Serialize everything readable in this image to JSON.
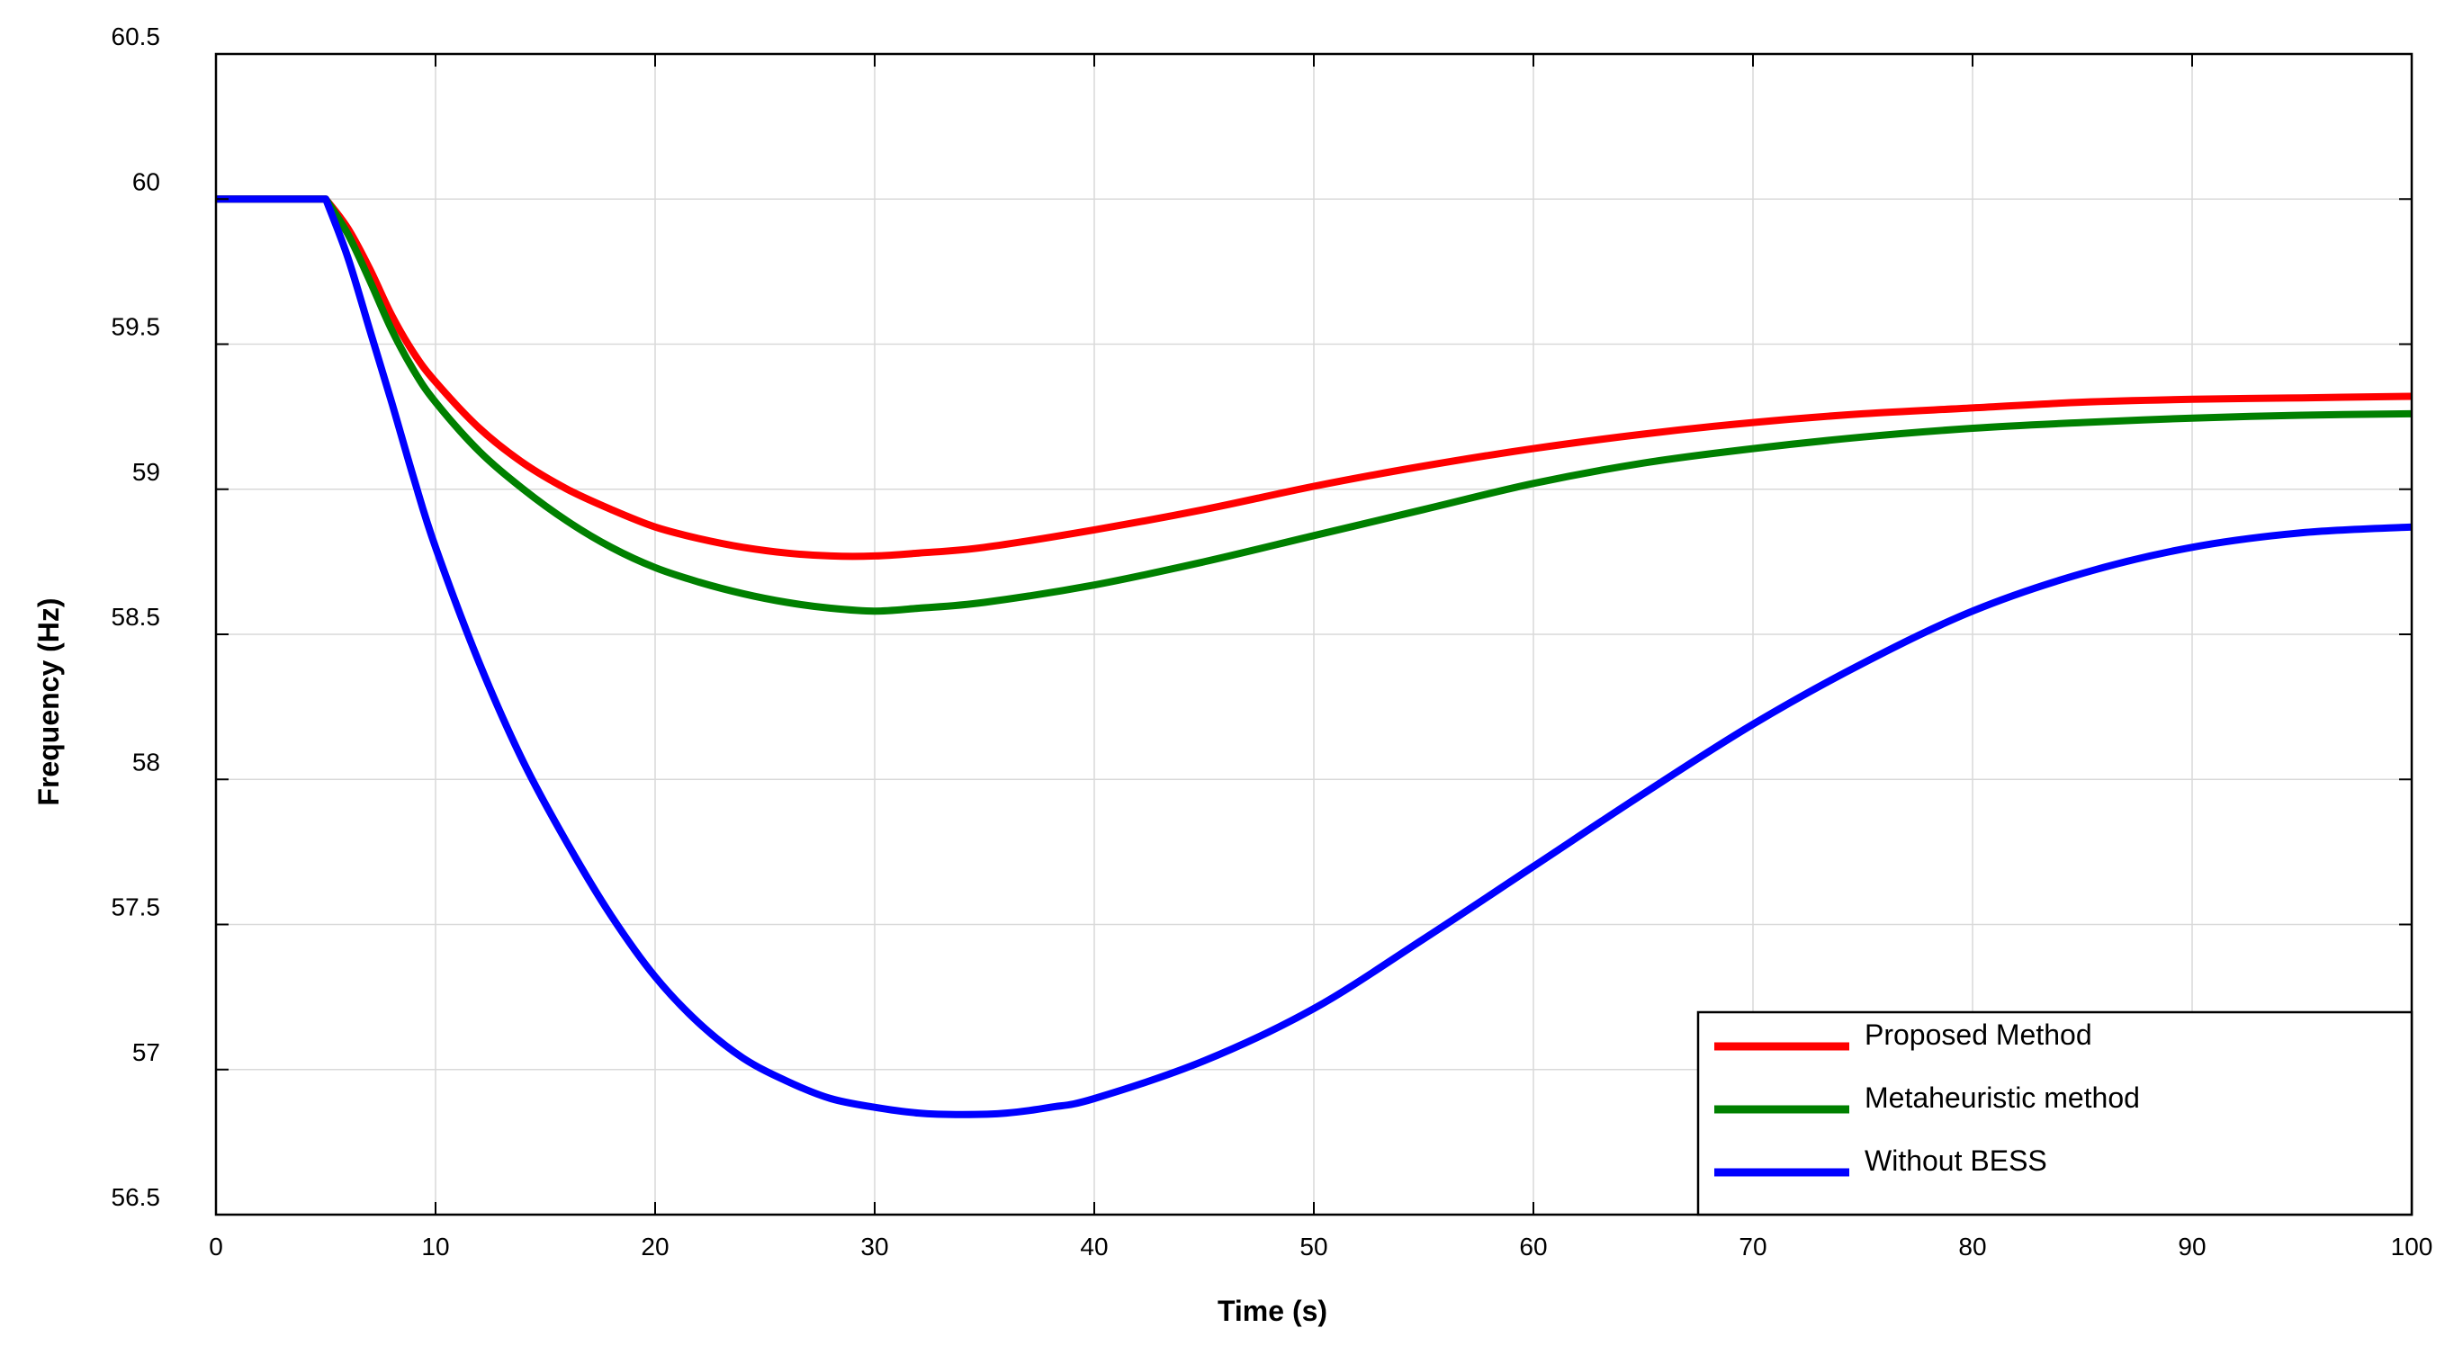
{
  "chart_data": {
    "type": "line",
    "title": "",
    "xlabel": "Time (s)",
    "ylabel": "Frequency (Hz)",
    "xlim": [
      0,
      100
    ],
    "ylim": [
      56.5,
      60.5
    ],
    "xticks": [
      0,
      10,
      20,
      30,
      40,
      50,
      60,
      70,
      80,
      90,
      100
    ],
    "yticks": [
      56.5,
      57,
      57.5,
      58,
      58.5,
      59,
      59.5,
      60,
      60.5
    ],
    "ytick_labels": [
      "56.5",
      "57",
      "57.5",
      "58",
      "58.5",
      "59",
      "59.5",
      "60",
      "60.5"
    ],
    "grid": true,
    "legend_position": "bottom-right",
    "series": [
      {
        "name": "Proposed Method",
        "color": "#ff0000",
        "x": [
          0,
          5,
          6,
          7,
          8,
          9,
          10,
          12,
          14,
          16,
          18,
          20,
          22,
          24,
          26,
          28,
          30,
          32,
          35,
          40,
          45,
          50,
          55,
          60,
          65,
          70,
          75,
          80,
          85,
          90,
          95,
          100
        ],
        "y": [
          60,
          60,
          59.9,
          59.76,
          59.6,
          59.47,
          59.37,
          59.21,
          59.09,
          59.0,
          58.93,
          58.87,
          58.83,
          58.8,
          58.78,
          58.77,
          58.77,
          58.78,
          58.8,
          58.86,
          58.93,
          59.01,
          59.08,
          59.14,
          59.19,
          59.23,
          59.26,
          59.28,
          59.3,
          59.31,
          59.315,
          59.32
        ]
      },
      {
        "name": "Metaheuristic method",
        "color": "#008000",
        "x": [
          0,
          5,
          6,
          7,
          8,
          9,
          10,
          12,
          14,
          16,
          18,
          20,
          22,
          24,
          26,
          28,
          30,
          32,
          35,
          40,
          45,
          50,
          55,
          60,
          65,
          70,
          75,
          80,
          85,
          90,
          95,
          100
        ],
        "y": [
          60,
          60,
          59.88,
          59.72,
          59.55,
          59.41,
          59.3,
          59.13,
          59.0,
          58.89,
          58.8,
          58.73,
          58.68,
          58.64,
          58.61,
          58.59,
          58.58,
          58.59,
          58.61,
          58.67,
          58.75,
          58.84,
          58.93,
          59.02,
          59.09,
          59.14,
          59.18,
          59.21,
          59.23,
          59.245,
          59.255,
          59.26
        ]
      },
      {
        "name": "Without BESS",
        "color": "#0000ff",
        "x": [
          0,
          5,
          6,
          7,
          8,
          9,
          10,
          12,
          14,
          16,
          18,
          20,
          22,
          24,
          26,
          28,
          30,
          32,
          34,
          36,
          38,
          40,
          45,
          50,
          55,
          60,
          65,
          70,
          75,
          80,
          85,
          90,
          95,
          100
        ],
        "y": [
          60,
          60,
          59.8,
          59.55,
          59.3,
          59.04,
          58.8,
          58.4,
          58.06,
          57.78,
          57.53,
          57.32,
          57.16,
          57.04,
          56.96,
          56.9,
          56.87,
          56.85,
          56.845,
          56.85,
          56.87,
          56.9,
          57.03,
          57.21,
          57.45,
          57.7,
          57.95,
          58.19,
          58.4,
          58.58,
          58.71,
          58.8,
          58.85,
          58.87
        ]
      }
    ]
  }
}
